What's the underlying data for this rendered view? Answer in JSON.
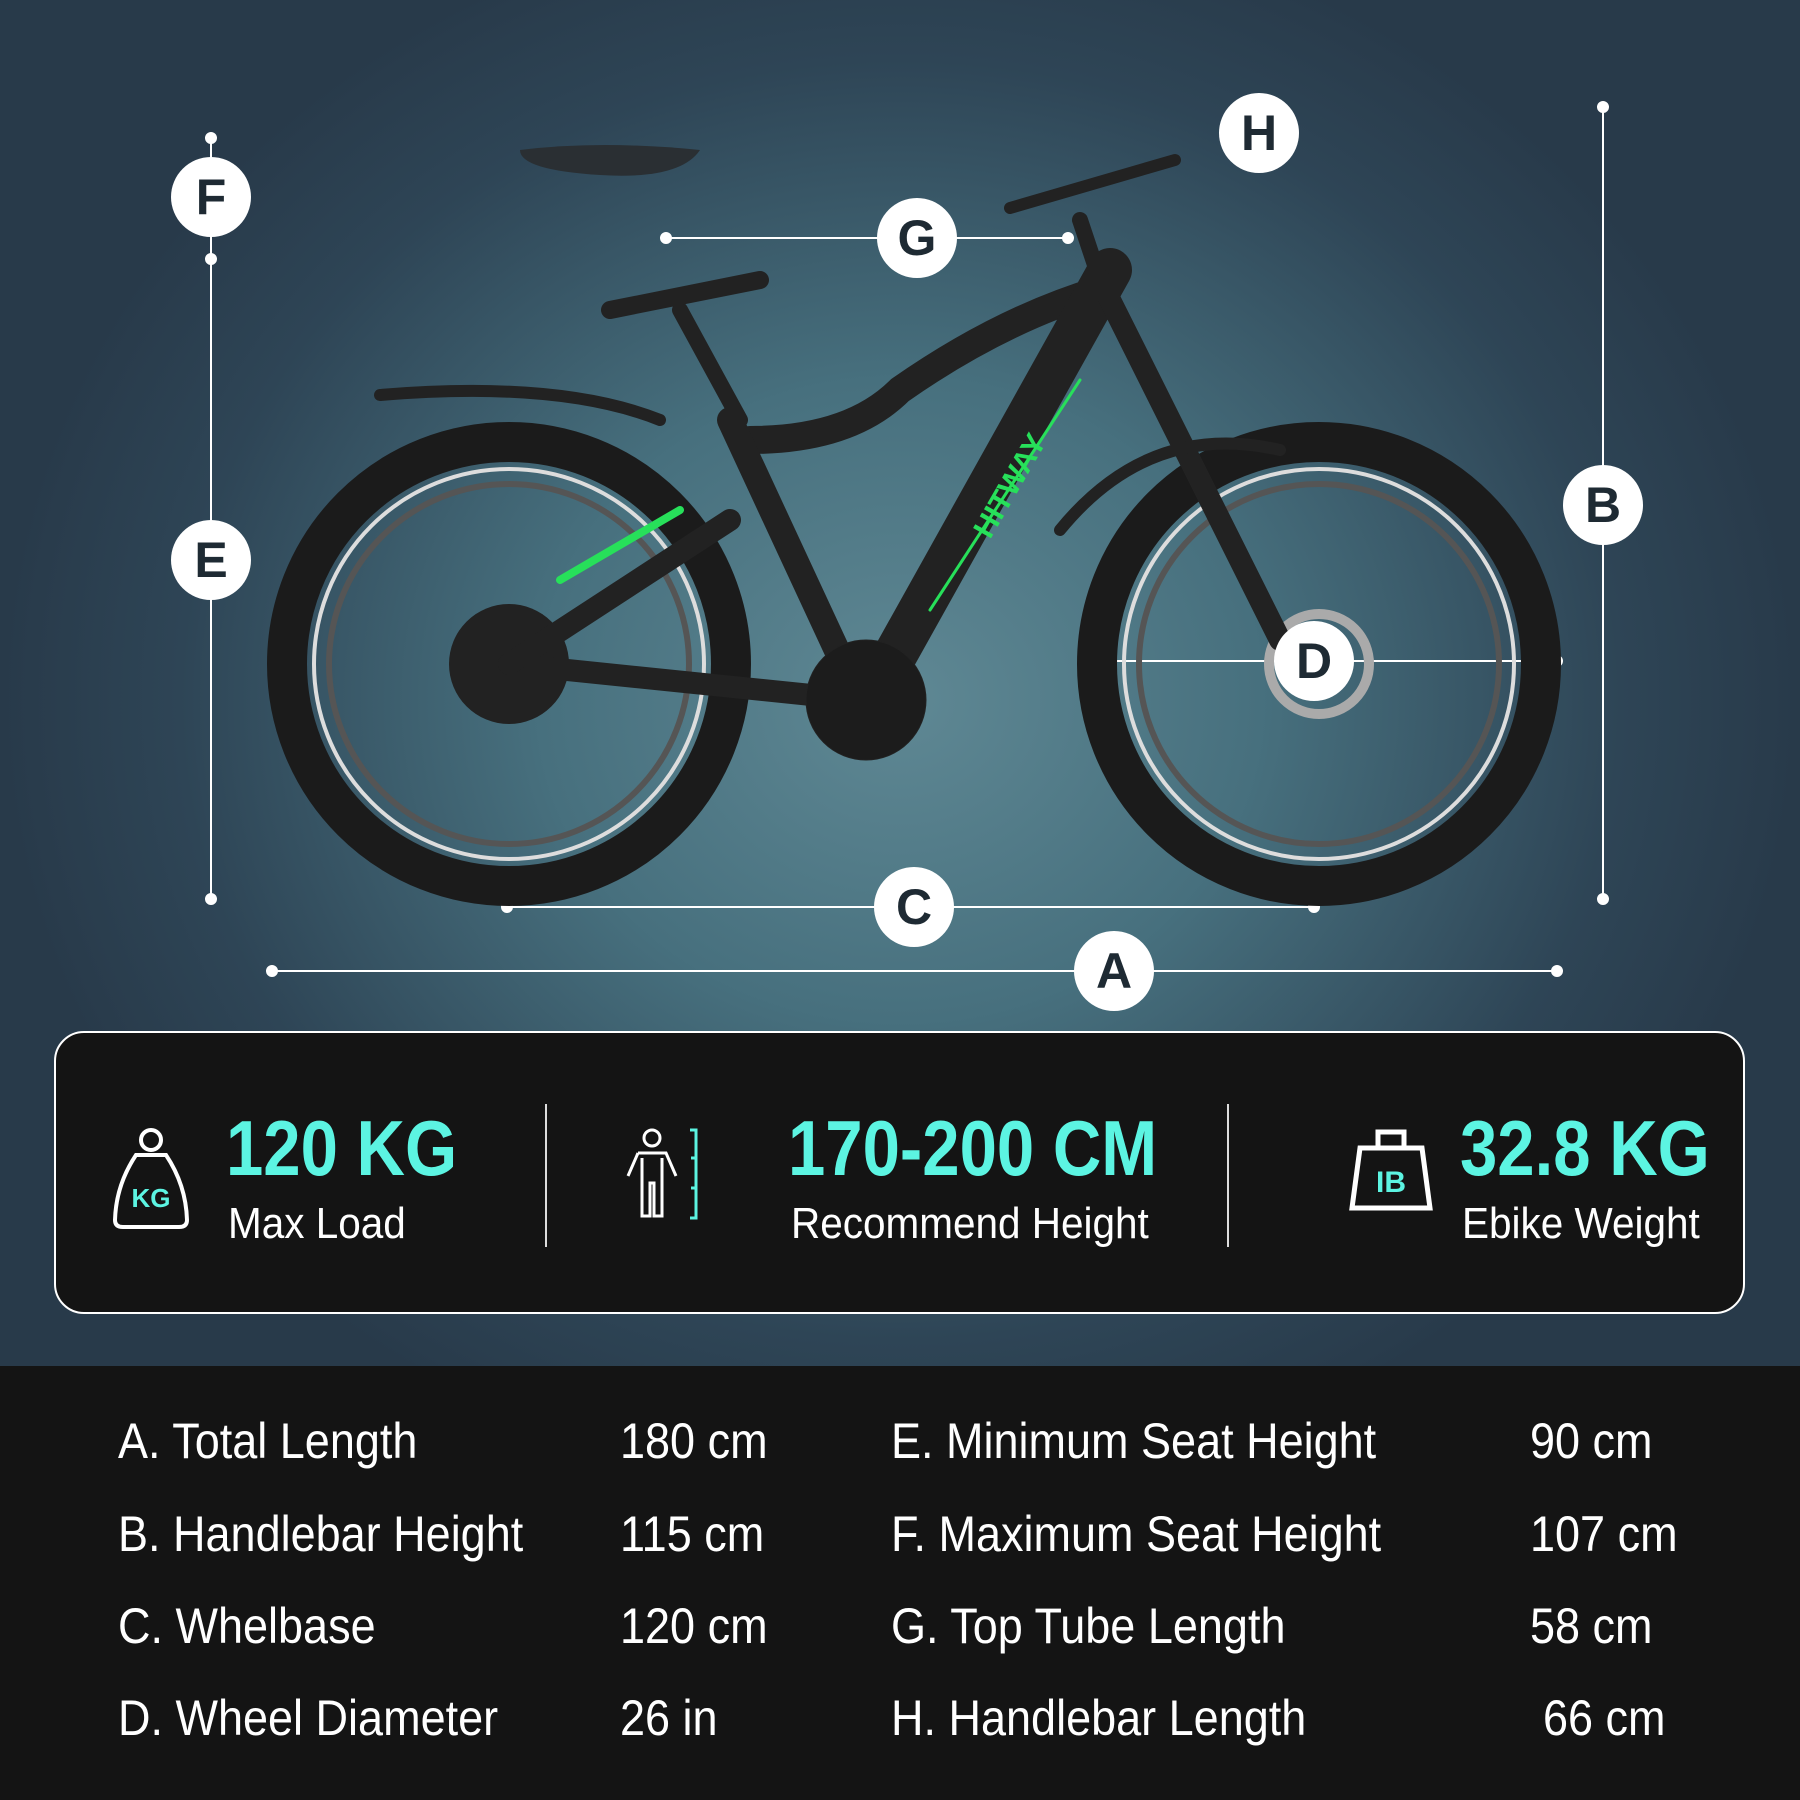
{
  "colors": {
    "accent": "#5cf4e2",
    "panel": "#141414",
    "frame_green": "#27e05a"
  },
  "bike": {
    "brand": "HITWAY"
  },
  "markers": {
    "A": "A",
    "B": "B",
    "C": "C",
    "D": "D",
    "E": "E",
    "F": "F",
    "G": "G",
    "H": "H"
  },
  "stats": [
    {
      "icon": "kg-weight-icon",
      "value": "120 KG",
      "label": "Max Load"
    },
    {
      "icon": "person-height-icon",
      "value": "170-200 CM",
      "label": "Recommend Height"
    },
    {
      "icon": "lb-weight-icon",
      "icon_text": "IB",
      "value": "32.8 KG",
      "label": "Ebike Weight"
    }
  ],
  "specs": [
    {
      "label": "A.  Total Length",
      "value": "180 cm"
    },
    {
      "label": "B. Handlebar Height",
      "value": "115 cm"
    },
    {
      "label": "C. Whelbase",
      "value": "120 cm"
    },
    {
      "label": "D. Wheel Diameter",
      "value": "26 in"
    },
    {
      "label": "E. Minimum Seat Height",
      "value": "90 cm"
    },
    {
      "label": "F. Maximum Seat Height",
      "value": "107 cm"
    },
    {
      "label": "G.  Top Tube Length",
      "value": "58 cm"
    },
    {
      "label": "H. Handlebar Length",
      "value": "66 cm"
    }
  ]
}
